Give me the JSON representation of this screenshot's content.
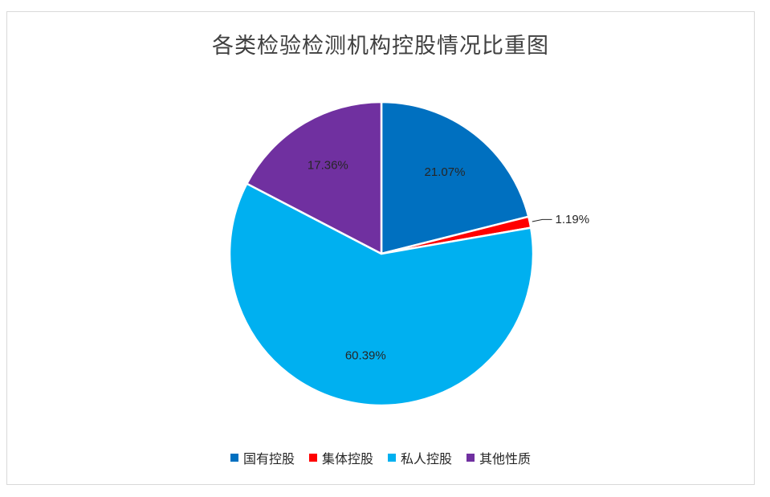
{
  "chart_data": {
    "type": "pie",
    "title": "各类检验检测机构控股情况比重图",
    "slices": [
      {
        "name": "国有控股",
        "value": 21.07,
        "label": "21.07%",
        "color": "#0070C0"
      },
      {
        "name": "集体控股",
        "value": 1.19,
        "label": "1.19%",
        "color": "#FF0000"
      },
      {
        "name": "私人控股",
        "value": 60.39,
        "label": "60.39%",
        "color": "#00B0F0"
      },
      {
        "name": "其他性质",
        "value": 17.36,
        "label": "17.36%",
        "color": "#7030A0"
      }
    ],
    "legend_position": "bottom"
  }
}
